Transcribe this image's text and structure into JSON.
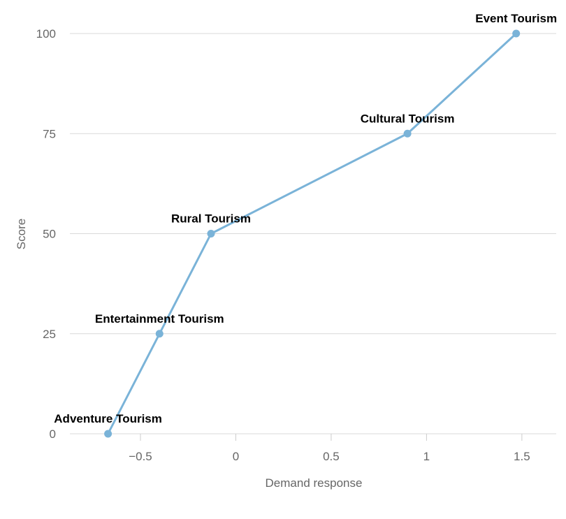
{
  "chart_data": {
    "type": "line",
    "title": "",
    "xlabel": "Demand response",
    "ylabel": "Score",
    "xlim": [
      -0.87,
      1.68
    ],
    "ylim": [
      0,
      100
    ],
    "x_ticks": [
      -0.5,
      0,
      0.5,
      1,
      1.5
    ],
    "x_tick_labels": [
      "−0.5",
      "0",
      "0.5",
      "1",
      "1.5"
    ],
    "y_ticks": [
      0,
      25,
      50,
      75,
      100
    ],
    "y_tick_labels": [
      "0",
      "25",
      "50",
      "75",
      "100"
    ],
    "grid": true,
    "color": "#7ab3d8",
    "series": [
      {
        "points": [
          {
            "x": -0.67,
            "y": 0,
            "label": "Adventure Tourism"
          },
          {
            "x": -0.4,
            "y": 25,
            "label": "Entertainment Tourism"
          },
          {
            "x": -0.13,
            "y": 50,
            "label": "Rural Tourism"
          },
          {
            "x": 0.9,
            "y": 75,
            "label": "Cultural Tourism"
          },
          {
            "x": 1.47,
            "y": 100,
            "label": "Event Tourism"
          }
        ]
      }
    ]
  }
}
